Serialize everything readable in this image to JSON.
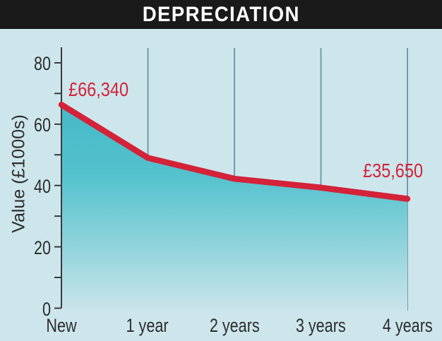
{
  "title": "DEPRECIATION",
  "colors": {
    "background": "#cde6ec",
    "title_bar": "#1a1a1a",
    "title_text": "#ffffff",
    "line": "#d42239",
    "area_top": "#45b9c7",
    "area_mid": "#55c2cd",
    "area_bottom": "#cbe4ea",
    "gridline": "#7899a7",
    "axis": "#3a3a3a",
    "text": "#2c2c2c"
  },
  "chart_data": {
    "type": "line",
    "title": "DEPRECIATION",
    "categories": [
      "New",
      "1 year",
      "2 years",
      "3 years",
      "4 years"
    ],
    "series": [
      {
        "name": "Value",
        "values": [
          66.34,
          49.0,
          42.2,
          39.3,
          35.65
        ]
      }
    ],
    "xlabel": "",
    "ylabel": "Value (£1000s)",
    "ylim": [
      0,
      80
    ],
    "y_major_ticks": [
      0,
      20,
      40,
      60,
      80
    ],
    "y_minor_ticks": [
      10,
      30,
      50,
      70
    ],
    "grid": "vertical-only",
    "legend": "none",
    "area_fill": true,
    "annotations": [
      {
        "text": "£66,340",
        "point": "New"
      },
      {
        "text": "£35,650",
        "point": "4 years"
      }
    ]
  }
}
